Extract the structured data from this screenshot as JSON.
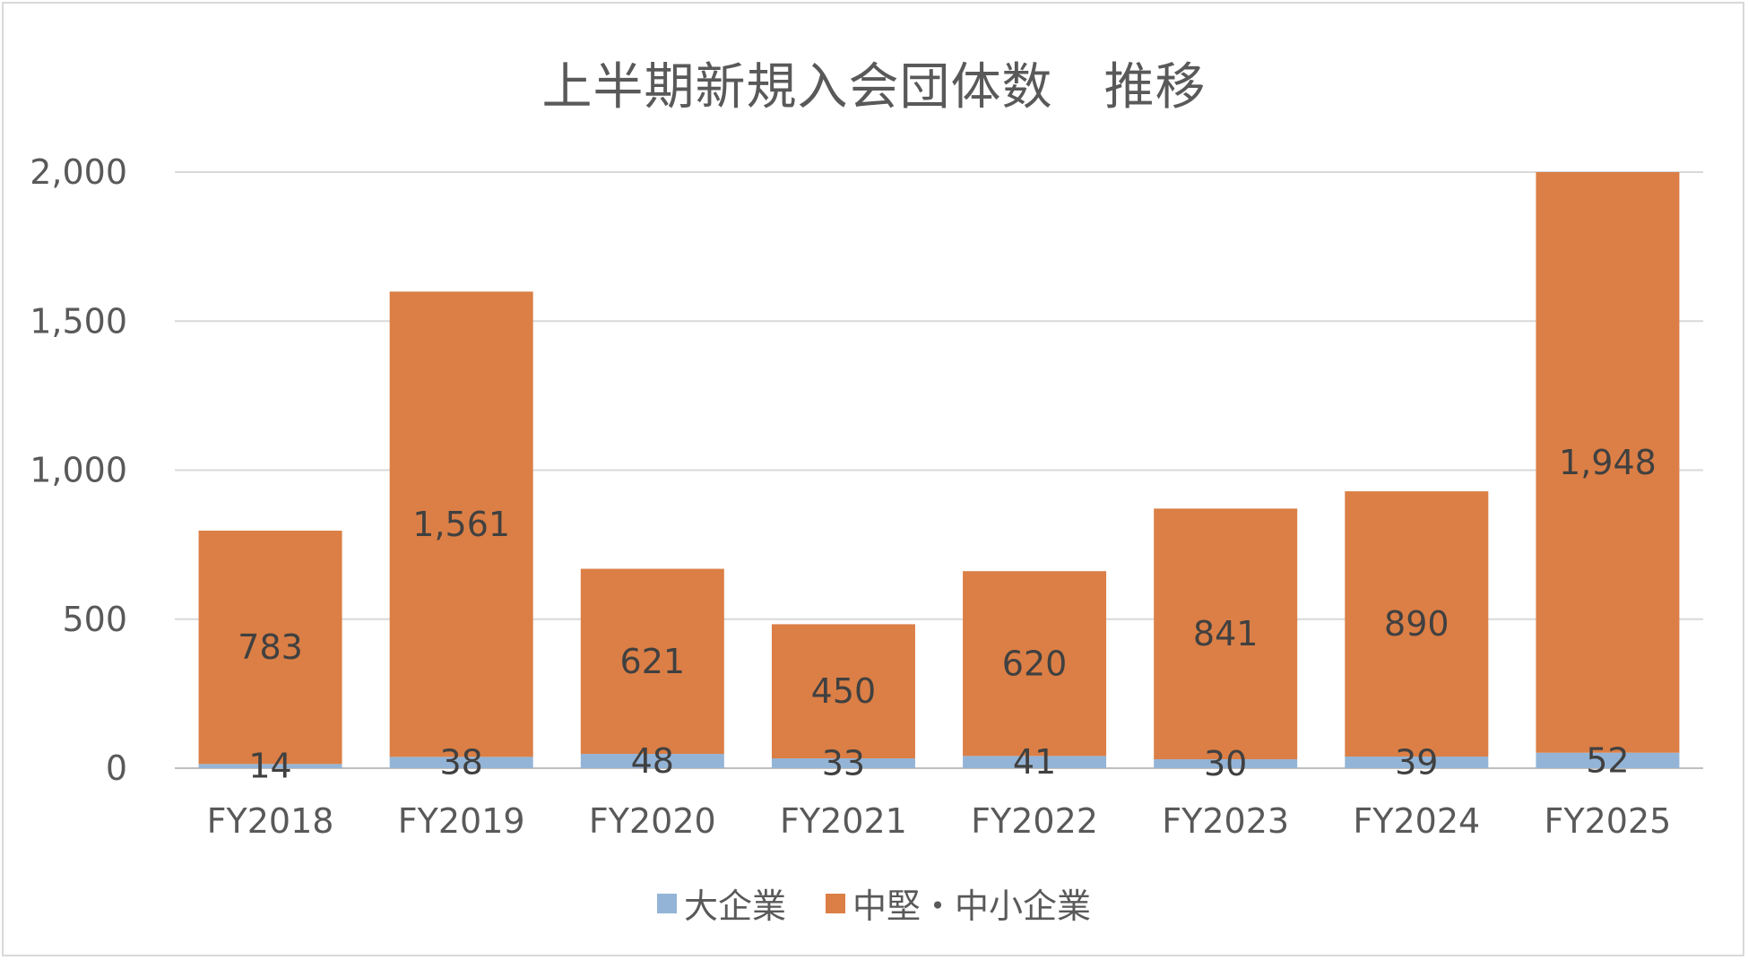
{
  "colors": {
    "large": "#93b4d6",
    "sme": "#db7f46",
    "grid": "#d9d9d9",
    "axis": "#bfbfbf"
  },
  "chart_data": {
    "type": "bar",
    "stacked": true,
    "title": "上半期新規入会団体数　推移",
    "xlabel": "",
    "ylabel": "",
    "ylim": [
      0,
      2000
    ],
    "yticks": [
      0,
      500,
      1000,
      1500,
      2000
    ],
    "ytick_labels": [
      "0",
      "500",
      "1,000",
      "1,500",
      "2,000"
    ],
    "categories": [
      "FY2018",
      "FY2019",
      "FY2020",
      "FY2021",
      "FY2022",
      "FY2023",
      "FY2024",
      "FY2025"
    ],
    "series": [
      {
        "name": "大企業",
        "values": [
          14,
          38,
          48,
          33,
          41,
          30,
          39,
          52
        ],
        "labels": [
          "14",
          "38",
          "48",
          "33",
          "41",
          "30",
          "39",
          "52"
        ]
      },
      {
        "name": "中堅・中小企業",
        "values": [
          783,
          1561,
          621,
          450,
          620,
          841,
          890,
          1948
        ],
        "labels": [
          "783",
          "1,561",
          "621",
          "450",
          "620",
          "841",
          "890",
          "1,948"
        ]
      }
    ],
    "grid": true,
    "legend_position": "bottom"
  }
}
